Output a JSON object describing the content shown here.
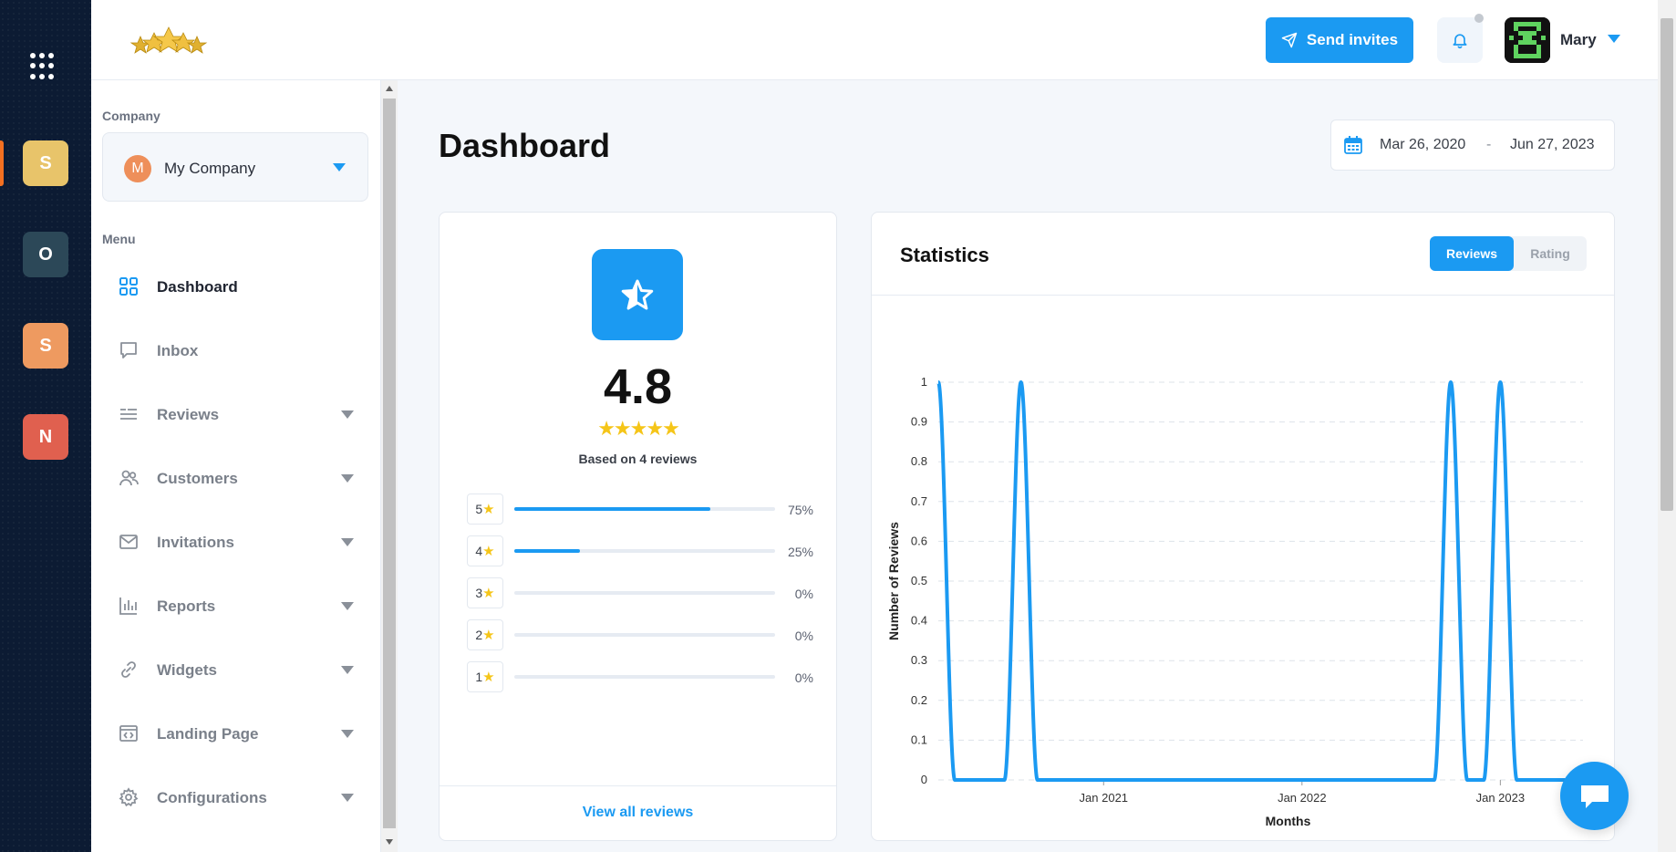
{
  "rail": {
    "workspaces": [
      {
        "letter": "S",
        "color": "#e8c46a"
      },
      {
        "letter": "O",
        "color": "#2c4858"
      },
      {
        "letter": "S",
        "color": "#ee9a60"
      },
      {
        "letter": "N",
        "color": "#e0604f"
      }
    ],
    "active_marker_color": "#f37021"
  },
  "header": {
    "send_invites": "Send invites",
    "user_name": "Mary"
  },
  "sidebar": {
    "company_label": "Company",
    "company_badge": "M",
    "company_name": "My Company",
    "menu_label": "Menu",
    "items": [
      {
        "label": "Dashboard",
        "icon": "dashboard-grid-icon",
        "active": true,
        "dropdown": false
      },
      {
        "label": "Inbox",
        "icon": "chat-bubble-icon",
        "active": false,
        "dropdown": false
      },
      {
        "label": "Reviews",
        "icon": "reviews-icon",
        "active": false,
        "dropdown": true
      },
      {
        "label": "Customers",
        "icon": "users-icon",
        "active": false,
        "dropdown": true
      },
      {
        "label": "Invitations",
        "icon": "envelope-icon",
        "active": false,
        "dropdown": true
      },
      {
        "label": "Reports",
        "icon": "bar-chart-icon",
        "active": false,
        "dropdown": true
      },
      {
        "label": "Widgets",
        "icon": "link-icon",
        "active": false,
        "dropdown": true
      },
      {
        "label": "Landing Page",
        "icon": "code-window-icon",
        "active": false,
        "dropdown": true
      },
      {
        "label": "Configurations",
        "icon": "gear-icon",
        "active": false,
        "dropdown": true
      }
    ]
  },
  "main": {
    "title": "Dashboard",
    "date_from": "Mar 26, 2020",
    "date_sep": "-",
    "date_to": "Jun 27, 2023"
  },
  "rating": {
    "score": "4.8",
    "stars": "★★★★★",
    "based_on": "Based on 4 reviews",
    "distribution": [
      {
        "stars": "5",
        "percent": 75,
        "label": "75%"
      },
      {
        "stars": "4",
        "percent": 25,
        "label": "25%"
      },
      {
        "stars": "3",
        "percent": 0,
        "label": "0%"
      },
      {
        "stars": "2",
        "percent": 0,
        "label": "0%"
      },
      {
        "stars": "1",
        "percent": 0,
        "label": "0%"
      }
    ],
    "view_all": "View all reviews"
  },
  "statistics": {
    "title": "Statistics",
    "tabs": [
      "Reviews",
      "Rating"
    ],
    "active_tab": "Reviews"
  },
  "chart_data": {
    "type": "line",
    "title": "",
    "xlabel": "Months",
    "ylabel": "Number of Reviews",
    "ylim": [
      0,
      1
    ],
    "yticks": [
      "0",
      "0.1",
      "0.2",
      "0.3",
      "0.4",
      "0.5",
      "0.6",
      "0.7",
      "0.8",
      "0.9",
      "1"
    ],
    "xticks": [
      {
        "label": "Jan 2021",
        "date": "2021-01"
      },
      {
        "label": "Jan 2022",
        "date": "2022-01"
      },
      {
        "label": "Jan 2023",
        "date": "2023-01"
      }
    ],
    "x_range": [
      "2020-03",
      "2023-06"
    ],
    "grid": "horizontal dashed",
    "series": [
      {
        "color": "#1b9af2",
        "points": [
          {
            "x": "2020-03",
            "y": 1
          },
          {
            "x": "2020-04",
            "y": 0
          },
          {
            "x": "2020-05",
            "y": 0
          },
          {
            "x": "2020-06",
            "y": 0
          },
          {
            "x": "2020-07",
            "y": 0
          },
          {
            "x": "2020-08",
            "y": 1
          },
          {
            "x": "2020-09",
            "y": 0
          },
          {
            "x": "2020-10",
            "y": 0
          },
          {
            "x": "2020-11",
            "y": 0
          },
          {
            "x": "2020-12",
            "y": 0
          },
          {
            "x": "2021-01",
            "y": 0
          },
          {
            "x": "2021-02",
            "y": 0
          },
          {
            "x": "2021-03",
            "y": 0
          },
          {
            "x": "2021-04",
            "y": 0
          },
          {
            "x": "2021-05",
            "y": 0
          },
          {
            "x": "2021-06",
            "y": 0
          },
          {
            "x": "2021-07",
            "y": 0
          },
          {
            "x": "2021-08",
            "y": 0
          },
          {
            "x": "2021-09",
            "y": 0
          },
          {
            "x": "2021-10",
            "y": 0
          },
          {
            "x": "2021-11",
            "y": 0
          },
          {
            "x": "2021-12",
            "y": 0
          },
          {
            "x": "2022-01",
            "y": 0
          },
          {
            "x": "2022-02",
            "y": 0
          },
          {
            "x": "2022-03",
            "y": 0
          },
          {
            "x": "2022-04",
            "y": 0
          },
          {
            "x": "2022-05",
            "y": 0
          },
          {
            "x": "2022-06",
            "y": 0
          },
          {
            "x": "2022-07",
            "y": 0
          },
          {
            "x": "2022-08",
            "y": 0
          },
          {
            "x": "2022-09",
            "y": 0
          },
          {
            "x": "2022-10",
            "y": 1
          },
          {
            "x": "2022-11",
            "y": 0
          },
          {
            "x": "2022-12",
            "y": 0
          },
          {
            "x": "2023-01",
            "y": 1
          },
          {
            "x": "2023-02",
            "y": 0
          },
          {
            "x": "2023-03",
            "y": 0
          },
          {
            "x": "2023-04",
            "y": 0
          },
          {
            "x": "2023-05",
            "y": 0
          },
          {
            "x": "2023-06",
            "y": 0
          }
        ]
      }
    ]
  },
  "colors": {
    "accent": "#1b9af2",
    "star": "#f5c518",
    "rail_bg": "#0c1b33"
  }
}
